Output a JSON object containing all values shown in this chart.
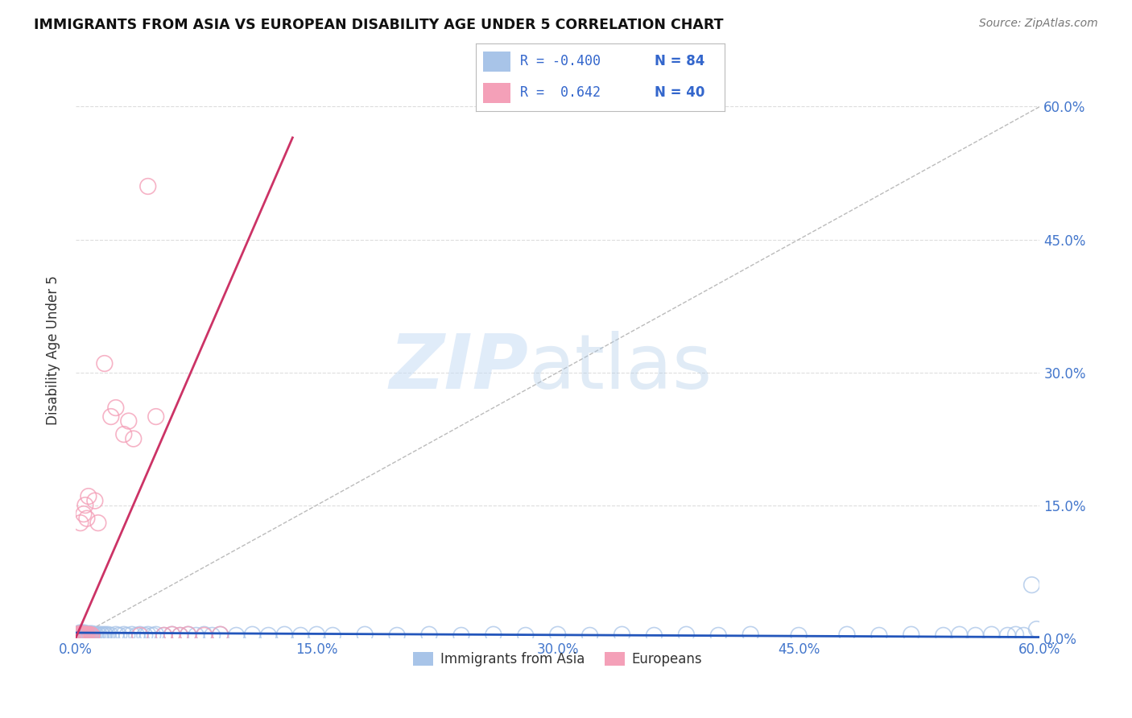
{
  "title": "IMMIGRANTS FROM ASIA VS EUROPEAN DISABILITY AGE UNDER 5 CORRELATION CHART",
  "source": "Source: ZipAtlas.com",
  "ylabel": "Disability Age Under 5",
  "xlim": [
    0.0,
    0.6
  ],
  "ylim": [
    0.0,
    0.65
  ],
  "xtick_vals": [
    0.0,
    0.15,
    0.3,
    0.45,
    0.6
  ],
  "ytick_vals": [
    0.0,
    0.15,
    0.3,
    0.45,
    0.6
  ],
  "color_blue": "#a8c4e8",
  "color_pink": "#f4a0b8",
  "color_blue_line": "#2255bb",
  "color_pink_line": "#cc3366",
  "color_diag": "#bbbbbb",
  "background": "#ffffff",
  "grid_color": "#dddddd",
  "asia_x": [
    0.001,
    0.002,
    0.002,
    0.003,
    0.003,
    0.003,
    0.004,
    0.004,
    0.005,
    0.005,
    0.005,
    0.006,
    0.006,
    0.007,
    0.007,
    0.008,
    0.008,
    0.009,
    0.009,
    0.01,
    0.01,
    0.011,
    0.012,
    0.013,
    0.014,
    0.015,
    0.016,
    0.017,
    0.018,
    0.019,
    0.02,
    0.022,
    0.025,
    0.027,
    0.03,
    0.032,
    0.035,
    0.038,
    0.04,
    0.043,
    0.045,
    0.048,
    0.05,
    0.055,
    0.06,
    0.065,
    0.07,
    0.075,
    0.08,
    0.085,
    0.09,
    0.1,
    0.11,
    0.12,
    0.13,
    0.14,
    0.15,
    0.16,
    0.18,
    0.2,
    0.22,
    0.24,
    0.26,
    0.28,
    0.3,
    0.32,
    0.34,
    0.36,
    0.38,
    0.4,
    0.42,
    0.45,
    0.48,
    0.5,
    0.52,
    0.54,
    0.55,
    0.56,
    0.57,
    0.58,
    0.585,
    0.59,
    0.595,
    0.598
  ],
  "asia_y": [
    0.004,
    0.003,
    0.005,
    0.003,
    0.004,
    0.006,
    0.003,
    0.005,
    0.003,
    0.004,
    0.006,
    0.003,
    0.005,
    0.003,
    0.004,
    0.003,
    0.005,
    0.003,
    0.004,
    0.003,
    0.005,
    0.003,
    0.004,
    0.003,
    0.004,
    0.003,
    0.004,
    0.003,
    0.004,
    0.003,
    0.004,
    0.003,
    0.004,
    0.003,
    0.004,
    0.003,
    0.004,
    0.003,
    0.004,
    0.003,
    0.004,
    0.003,
    0.004,
    0.003,
    0.004,
    0.003,
    0.004,
    0.003,
    0.004,
    0.003,
    0.004,
    0.003,
    0.004,
    0.003,
    0.004,
    0.003,
    0.004,
    0.003,
    0.004,
    0.003,
    0.004,
    0.003,
    0.004,
    0.003,
    0.004,
    0.003,
    0.004,
    0.003,
    0.004,
    0.003,
    0.004,
    0.003,
    0.004,
    0.003,
    0.004,
    0.003,
    0.004,
    0.003,
    0.004,
    0.003,
    0.004,
    0.003,
    0.06,
    0.01
  ],
  "euro_x": [
    0.001,
    0.002,
    0.002,
    0.003,
    0.003,
    0.004,
    0.004,
    0.005,
    0.005,
    0.006,
    0.006,
    0.007,
    0.008,
    0.009,
    0.01,
    0.011,
    0.012,
    0.013,
    0.014,
    0.015,
    0.016,
    0.018,
    0.02,
    0.022,
    0.025,
    0.028,
    0.03,
    0.033,
    0.036,
    0.04,
    0.043,
    0.046,
    0.05,
    0.055,
    0.06,
    0.07,
    0.08,
    0.09,
    0.1,
    0.12
  ],
  "euro_y": [
    0.003,
    0.004,
    0.13,
    0.003,
    0.135,
    0.004,
    0.14,
    0.003,
    0.15,
    0.004,
    0.16,
    0.004,
    0.165,
    0.003,
    0.004,
    0.17,
    0.155,
    0.003,
    0.13,
    0.003,
    0.004,
    0.31,
    0.003,
    0.25,
    0.26,
    0.004,
    0.23,
    0.245,
    0.22,
    0.004,
    0.003,
    0.004,
    0.25,
    0.003,
    0.004,
    0.003,
    0.004,
    0.003,
    0.004,
    0.003
  ],
  "blue_line_x": [
    0.0,
    0.6
  ],
  "blue_line_y": [
    0.006,
    0.001
  ],
  "pink_line_x": [
    0.0,
    0.135
  ],
  "pink_line_y": [
    0.0,
    0.565
  ],
  "legend_r1": "R = -0.400",
  "legend_n1": "N = 84",
  "legend_r2": "R =  0.642",
  "legend_n2": "N = 40",
  "watermark_zip": "ZIP",
  "watermark_atlas": "atlas"
}
